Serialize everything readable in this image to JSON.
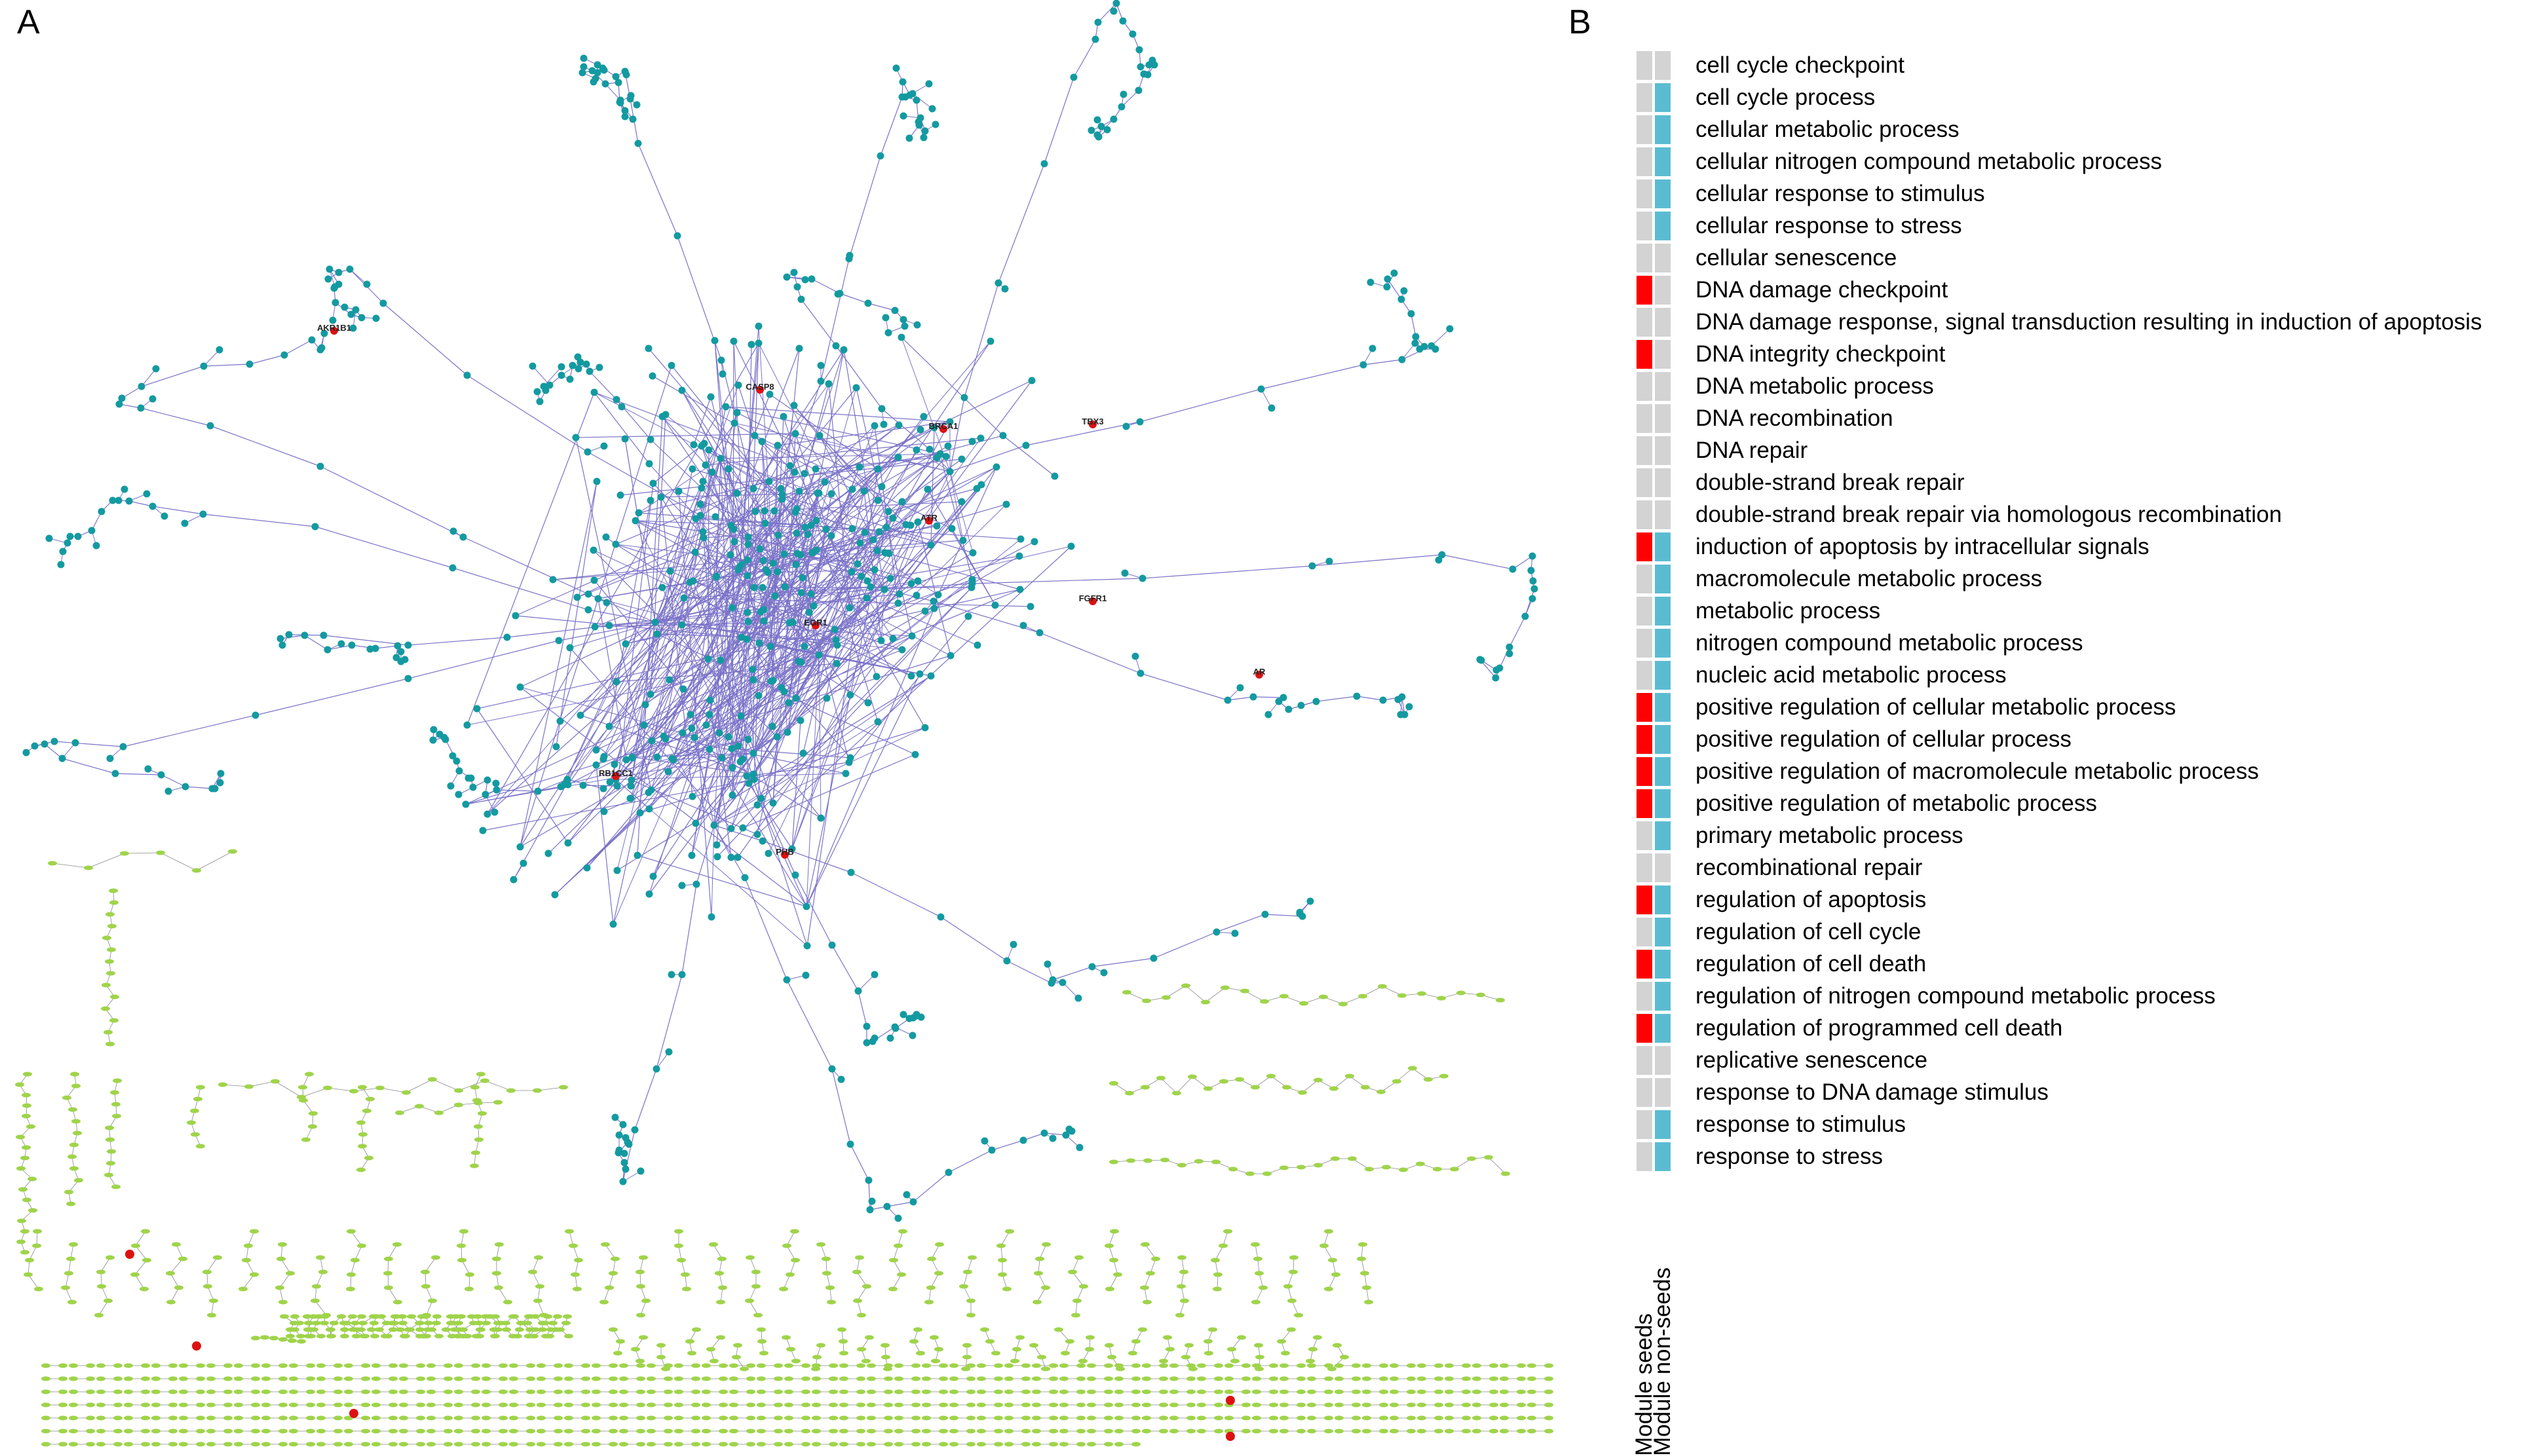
{
  "panels": {
    "a": "A",
    "b": "B"
  },
  "network": {
    "seed_labels": [
      "AKR1B1",
      "CASP8",
      "BRCA1",
      "TBX3",
      "ATR",
      "FGFR1",
      "EGR1",
      "AR",
      "RB1CC1",
      "PHB"
    ],
    "colors": {
      "module_node": "#139aa0",
      "other_node": "#9fd44a",
      "seed_node": "#dd1111",
      "edge": "#7b73c8"
    }
  },
  "heatmap": {
    "columns": [
      "Module seeds",
      "Module non-seeds"
    ],
    "colors": {
      "present_seed": "#ff0000",
      "present_nonseed": "#5bbcd1",
      "absent": "#d3d3d3"
    },
    "terms": [
      {
        "label": "cell cycle checkpoint",
        "seeds": false,
        "nonseeds": false
      },
      {
        "label": "cell cycle process",
        "seeds": false,
        "nonseeds": true
      },
      {
        "label": "cellular metabolic process",
        "seeds": false,
        "nonseeds": true
      },
      {
        "label": "cellular nitrogen compound metabolic process",
        "seeds": false,
        "nonseeds": true
      },
      {
        "label": "cellular response to stimulus",
        "seeds": false,
        "nonseeds": true
      },
      {
        "label": "cellular response to stress",
        "seeds": false,
        "nonseeds": true
      },
      {
        "label": "cellular senescence",
        "seeds": false,
        "nonseeds": false
      },
      {
        "label": "DNA damage checkpoint",
        "seeds": true,
        "nonseeds": false
      },
      {
        "label": "DNA damage response, signal transduction resulting in induction of apoptosis",
        "seeds": false,
        "nonseeds": false
      },
      {
        "label": "DNA integrity checkpoint",
        "seeds": true,
        "nonseeds": false
      },
      {
        "label": "DNA metabolic process",
        "seeds": false,
        "nonseeds": false
      },
      {
        "label": "DNA recombination",
        "seeds": false,
        "nonseeds": false
      },
      {
        "label": "DNA repair",
        "seeds": false,
        "nonseeds": false
      },
      {
        "label": "double-strand break repair",
        "seeds": false,
        "nonseeds": false
      },
      {
        "label": "double-strand break repair via homologous recombination",
        "seeds": false,
        "nonseeds": false
      },
      {
        "label": "induction of apoptosis by intracellular signals",
        "seeds": true,
        "nonseeds": true
      },
      {
        "label": "macromolecule metabolic process",
        "seeds": false,
        "nonseeds": true
      },
      {
        "label": "metabolic process",
        "seeds": false,
        "nonseeds": true
      },
      {
        "label": "nitrogen compound metabolic process",
        "seeds": false,
        "nonseeds": true
      },
      {
        "label": "nucleic acid metabolic process",
        "seeds": false,
        "nonseeds": true
      },
      {
        "label": "positive regulation of cellular metabolic process",
        "seeds": true,
        "nonseeds": true
      },
      {
        "label": "positive regulation of cellular process",
        "seeds": true,
        "nonseeds": true
      },
      {
        "label": "positive regulation of macromolecule metabolic process",
        "seeds": true,
        "nonseeds": true
      },
      {
        "label": "positive regulation of metabolic process",
        "seeds": true,
        "nonseeds": true
      },
      {
        "label": "primary metabolic process",
        "seeds": false,
        "nonseeds": true
      },
      {
        "label": "recombinational repair",
        "seeds": false,
        "nonseeds": false
      },
      {
        "label": "regulation of apoptosis",
        "seeds": true,
        "nonseeds": true
      },
      {
        "label": "regulation of cell cycle",
        "seeds": false,
        "nonseeds": true
      },
      {
        "label": "regulation of cell death",
        "seeds": true,
        "nonseeds": true
      },
      {
        "label": "regulation of nitrogen compound metabolic process",
        "seeds": false,
        "nonseeds": true
      },
      {
        "label": "regulation of programmed cell death",
        "seeds": true,
        "nonseeds": true
      },
      {
        "label": "replicative senescence",
        "seeds": false,
        "nonseeds": false
      },
      {
        "label": "response to DNA damage stimulus",
        "seeds": false,
        "nonseeds": false
      },
      {
        "label": "response to stimulus",
        "seeds": false,
        "nonseeds": true
      },
      {
        "label": "response to stress",
        "seeds": false,
        "nonseeds": true
      }
    ]
  }
}
